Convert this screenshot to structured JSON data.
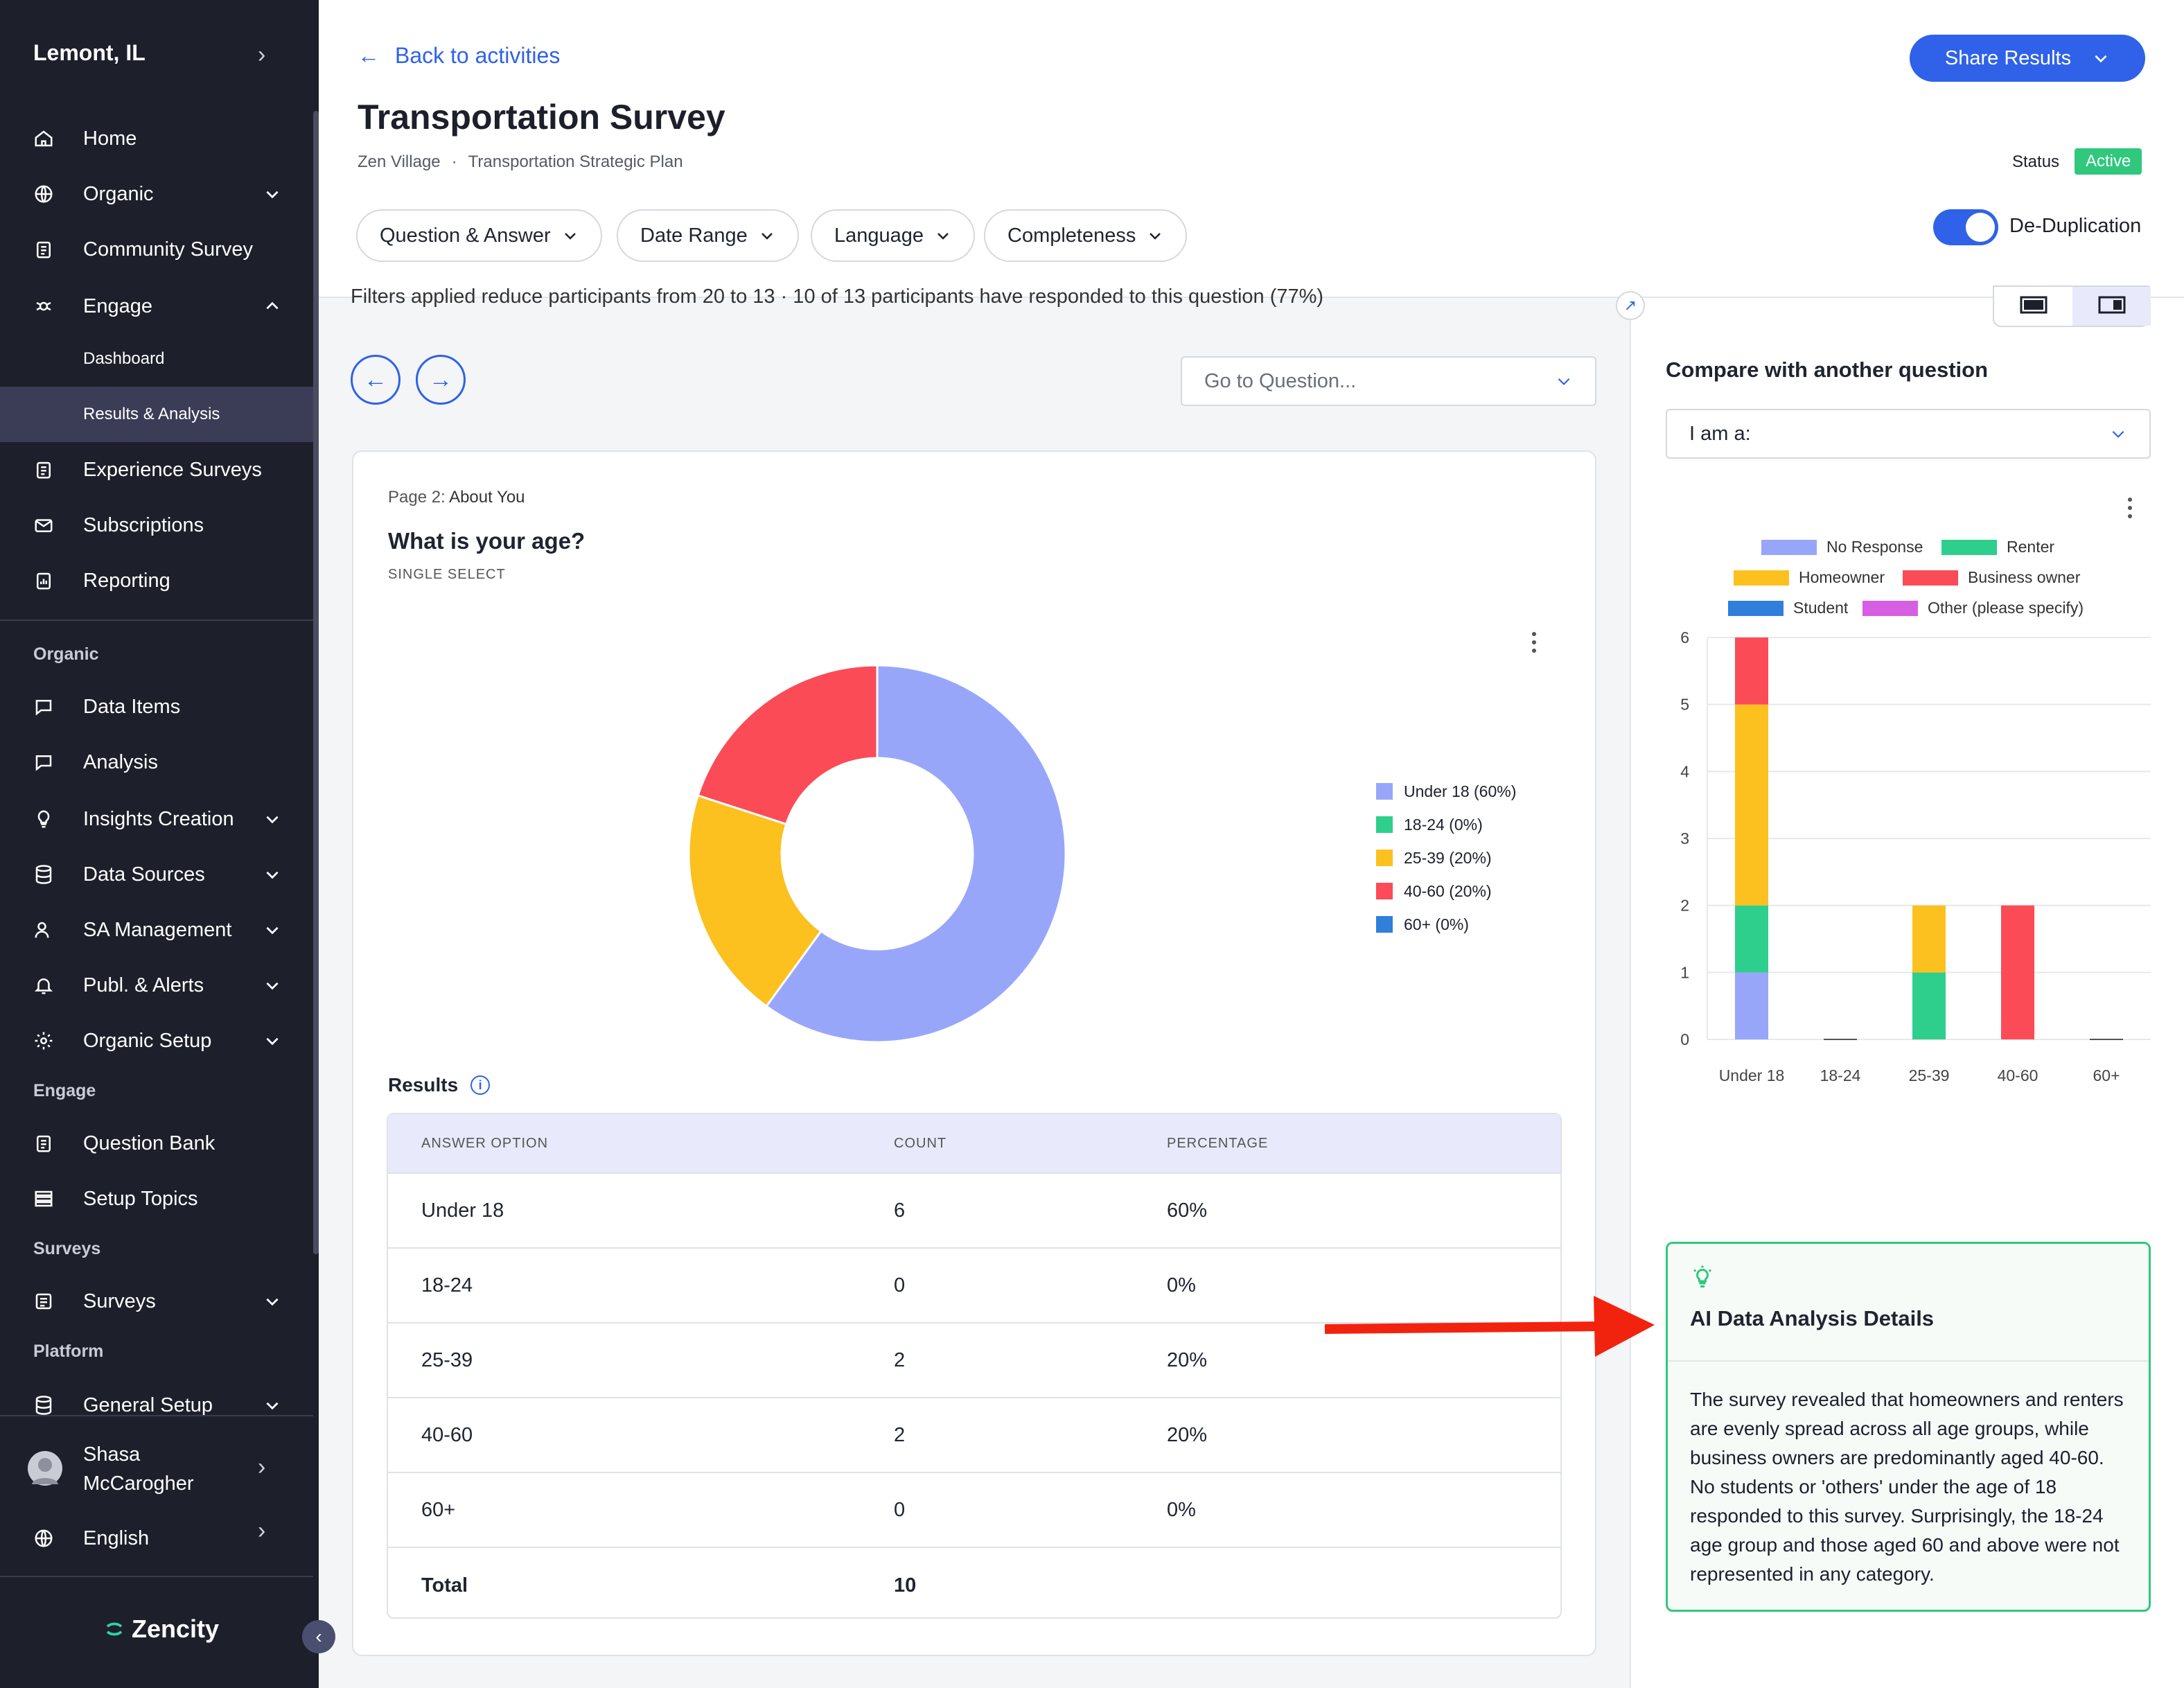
{
  "sidebar": {
    "city": "Lemont, IL",
    "items": [
      {
        "label": "Home",
        "icon": "home-icon"
      },
      {
        "label": "Organic",
        "icon": "globe-icon"
      },
      {
        "label": "Community Survey",
        "icon": "clipboard-icon"
      },
      {
        "label": "Engage",
        "icon": "engage-icon"
      },
      {
        "label": "Dashboard"
      },
      {
        "label": "Results & Analysis"
      },
      {
        "label": "Experience Surveys",
        "icon": "clipboard-icon"
      },
      {
        "label": "Subscriptions",
        "icon": "mail-icon"
      },
      {
        "label": "Reporting",
        "icon": "report-icon"
      }
    ],
    "section_organic": "Organic",
    "organic_items": [
      {
        "label": "Data Items",
        "icon": "chat-icon"
      },
      {
        "label": "Analysis",
        "icon": "chat-icon"
      },
      {
        "label": "Insights Creation",
        "icon": "lightbulb-icon"
      },
      {
        "label": "Data Sources",
        "icon": "database-icon"
      },
      {
        "label": "SA Management",
        "icon": "user-icon"
      },
      {
        "label": "Publ. & Alerts",
        "icon": "bell-icon"
      },
      {
        "label": "Organic Setup",
        "icon": "gear-icon"
      }
    ],
    "section_engage": "Engage",
    "engage_items": [
      {
        "label": "Question Bank",
        "icon": "clipboard-icon"
      },
      {
        "label": "Setup Topics",
        "icon": "list-icon"
      }
    ],
    "section_surveys": "Surveys",
    "surveys_items": [
      {
        "label": "Surveys",
        "icon": "survey-icon"
      }
    ],
    "section_platform": "Platform",
    "platform_items": [
      {
        "label": "General Setup",
        "icon": "database-icon"
      }
    ],
    "user_first": "Shasa",
    "user_last": "McCarogher",
    "language": "English",
    "brand": "Zencity"
  },
  "header": {
    "back": "Back to activities",
    "title": "Transportation Survey",
    "crumb1": "Zen Village",
    "crumb_sep": "·",
    "crumb2": "Transportation Strategic Plan",
    "share": "Share Results",
    "status_label": "Status",
    "status_value": "Active",
    "filters": [
      "Question & Answer",
      "Date Range",
      "Language",
      "Completeness"
    ],
    "dedup": "De-Duplication"
  },
  "main": {
    "filter_note": "Filters applied reduce participants from 20 to 13 · 10 of 13 participants have responded to this question (77%)",
    "goto_placeholder": "Go to Question...",
    "page_prefix": "Page 2:",
    "page_name": "About You",
    "question": "What is your age?",
    "qtype": "SINGLE SELECT",
    "results_label": "Results",
    "info_glyph": "i",
    "legend": [
      {
        "label": "Under 18 (60%)",
        "color": "#98a6fa"
      },
      {
        "label": "18-24 (0%)",
        "color": "#2ecf8c"
      },
      {
        "label": "25-39 (20%)",
        "color": "#fcc01f"
      },
      {
        "label": "40-60 (20%)",
        "color": "#fb4b57"
      },
      {
        "label": "60+ (0%)",
        "color": "#2f7fdb"
      }
    ],
    "table": {
      "headers": [
        "ANSWER OPTION",
        "COUNT",
        "PERCENTAGE"
      ],
      "rows": [
        [
          "Under 18",
          "6",
          "60%"
        ],
        [
          "18-24",
          "0",
          "0%"
        ],
        [
          "25-39",
          "2",
          "20%"
        ],
        [
          "40-60",
          "2",
          "20%"
        ],
        [
          "60+",
          "0",
          "0%"
        ]
      ],
      "total_label": "Total",
      "total_value": "10"
    }
  },
  "right": {
    "compare_title": "Compare with another question",
    "compare_value": "I am a:",
    "legend": [
      {
        "label": "No Response",
        "color": "#98a6fa"
      },
      {
        "label": "Renter",
        "color": "#2ecf8c"
      },
      {
        "label": "Homeowner",
        "color": "#fcc01f"
      },
      {
        "label": "Business owner",
        "color": "#fb4b57"
      },
      {
        "label": "Student",
        "color": "#2f7fdb"
      },
      {
        "label": "Other (please specify)",
        "color": "#d65ee3"
      }
    ],
    "ai_title": "AI Data Analysis Details",
    "ai_text": "The survey revealed that homeowners and renters are evenly spread across all age groups, while business owners are predominantly aged 40-60. No students or 'others' under the age of 18 responded to this survey. Surprisingly, the 18-24 age group and those aged 60 and above were not represented in any category."
  },
  "chart_data": [
    {
      "type": "pie",
      "categories": [
        "Under 18",
        "18-24",
        "25-39",
        "40-60",
        "60+"
      ],
      "values": [
        60,
        0,
        20,
        20,
        0
      ],
      "colors": [
        "#98a6fa",
        "#2ecf8c",
        "#fcc01f",
        "#fb4b57",
        "#2f7fdb"
      ],
      "legend_position": "right"
    },
    {
      "type": "bar",
      "stacked": true,
      "categories": [
        "Under 18",
        "18-24",
        "25-39",
        "40-60",
        "60+"
      ],
      "yticks": [
        0,
        1,
        2,
        3,
        4,
        5,
        6
      ],
      "ylim": [
        0,
        6
      ],
      "series": [
        {
          "name": "No Response",
          "values": [
            1,
            0,
            0,
            0,
            0
          ],
          "color": "#98a6fa"
        },
        {
          "name": "Renter",
          "values": [
            1,
            0,
            1,
            0,
            0
          ],
          "color": "#2ecf8c"
        },
        {
          "name": "Homeowner",
          "values": [
            3,
            0,
            1,
            0,
            0
          ],
          "color": "#fcc01f"
        },
        {
          "name": "Business owner",
          "values": [
            1,
            0,
            0,
            2,
            0
          ],
          "color": "#fb4b57"
        },
        {
          "name": "Student",
          "values": [
            0,
            0,
            0,
            0,
            0
          ],
          "color": "#2f7fdb"
        },
        {
          "name": "Other (please specify)",
          "values": [
            0,
            0,
            0,
            0,
            0
          ],
          "color": "#d65ee3"
        }
      ],
      "grid": true,
      "legend_position": "top"
    }
  ]
}
